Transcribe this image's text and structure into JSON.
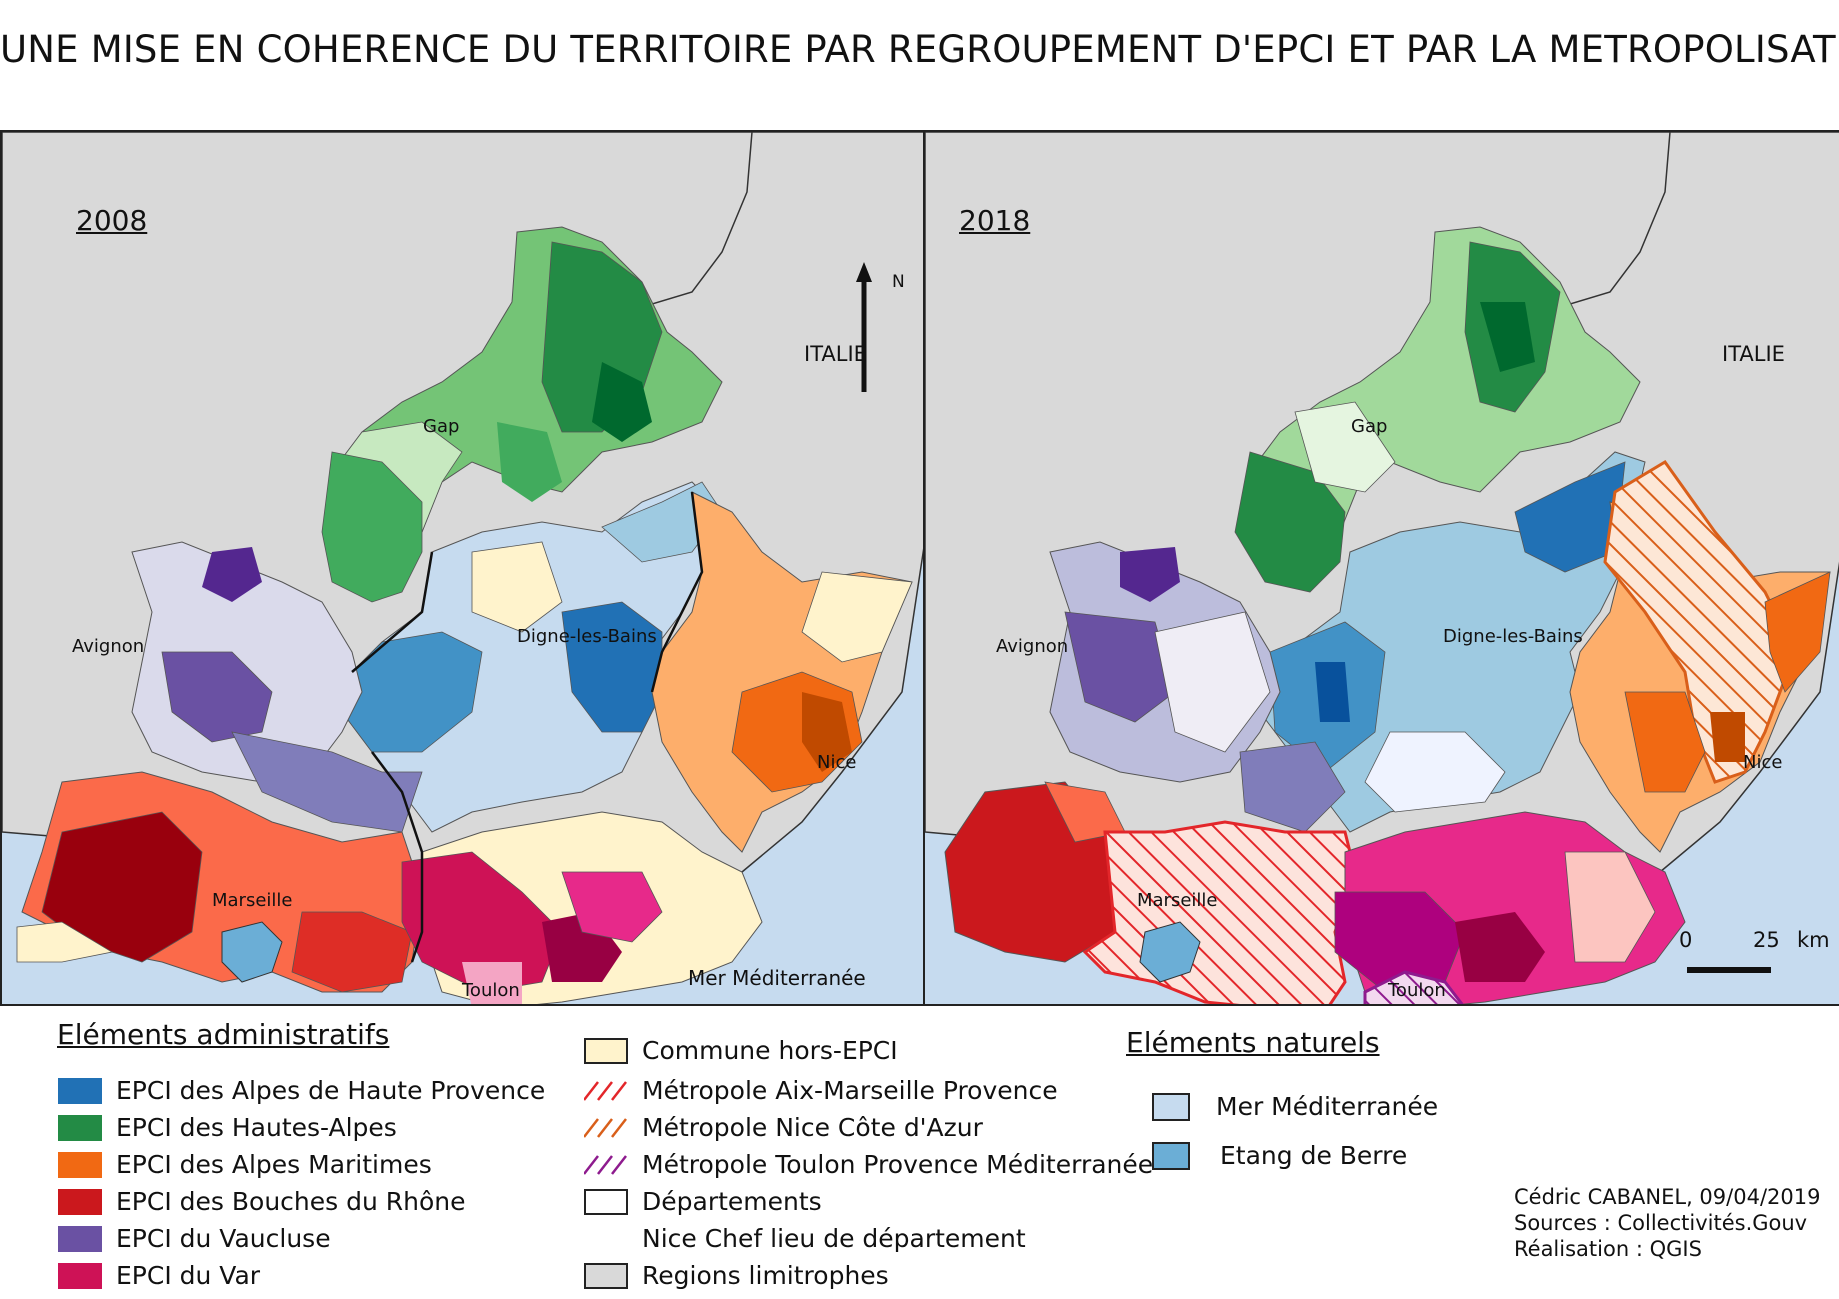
{
  "title": "UNE MISE EN COHERENCE DU TERRITOIRE PAR REGROUPEMENT D'EPCI ET PAR LA METROPOLISATION",
  "maps": [
    {
      "year": "2008",
      "cities": {
        "gap": "Gap",
        "avignon": "Avignon",
        "digne": "Digne-les-Bains",
        "nice": "Nice",
        "marseille": "Marseille",
        "toulon": "Toulon"
      },
      "italie": "ITALIE",
      "sea": "Mer Méditerranée",
      "north": "N"
    },
    {
      "year": "2018",
      "cities": {
        "gap": "Gap",
        "avignon": "Avignon",
        "digne": "Digne-les-Bains",
        "nice": "Nice",
        "marseille": "Marseille",
        "toulon": "Toulon"
      },
      "italie": "ITALIE",
      "scale_zero": "0",
      "scale_25": "25",
      "scale_km": "km"
    }
  ],
  "colors": {
    "sea": "#c6dbef",
    "etang": "#6baed6",
    "neighbor": "#d9d9d9",
    "hors_epci": "#fff3cc",
    "alpes_haute_provence": "#2171b5",
    "hautes_alpes": "#238b45",
    "alpes_maritimes": "#f16913",
    "bouches_du_rhone": "#cb181d",
    "vaucluse": "#6a51a3",
    "var": "#ce1256",
    "metro_aix": "#e3262a",
    "metro_nice": "#d95f1a",
    "metro_toulon": "#8e1b8e"
  },
  "legend": {
    "admin_title": "Eléments administratifs",
    "epci": [
      {
        "label": "EPCI des Alpes de Haute Provence",
        "color": "#2171b5"
      },
      {
        "label": "EPCI des Hautes-Alpes",
        "color": "#238b45"
      },
      {
        "label": "EPCI des Alpes Maritimes",
        "color": "#f16913"
      },
      {
        "label": "EPCI des Bouches du Rhône",
        "color": "#cb181d"
      },
      {
        "label": "EPCI du Vaucluse",
        "color": "#6a51a3"
      },
      {
        "label": "EPCI du Var",
        "color": "#ce1256"
      }
    ],
    "other": {
      "hors_epci": "Commune hors-EPCI",
      "metro_aix": "Métropole Aix-Marseille Provence",
      "metro_nice": "Métropole Nice Côte d'Azur",
      "metro_toulon": "Métropole Toulon Provence Méditerranée",
      "departements": "Départements",
      "chef_lieu": "Nice Chef lieu de département",
      "regions": "Regions limitrophes"
    },
    "nature_title": "Eléments naturels",
    "nature": {
      "mer": "Mer Méditerranée",
      "etang": "Etang de Berre"
    }
  },
  "credits": {
    "author": "Cédric CABANEL, 09/04/2019",
    "sources": "Sources : Collectivités.Gouv",
    "tool": "Réalisation : QGIS"
  }
}
